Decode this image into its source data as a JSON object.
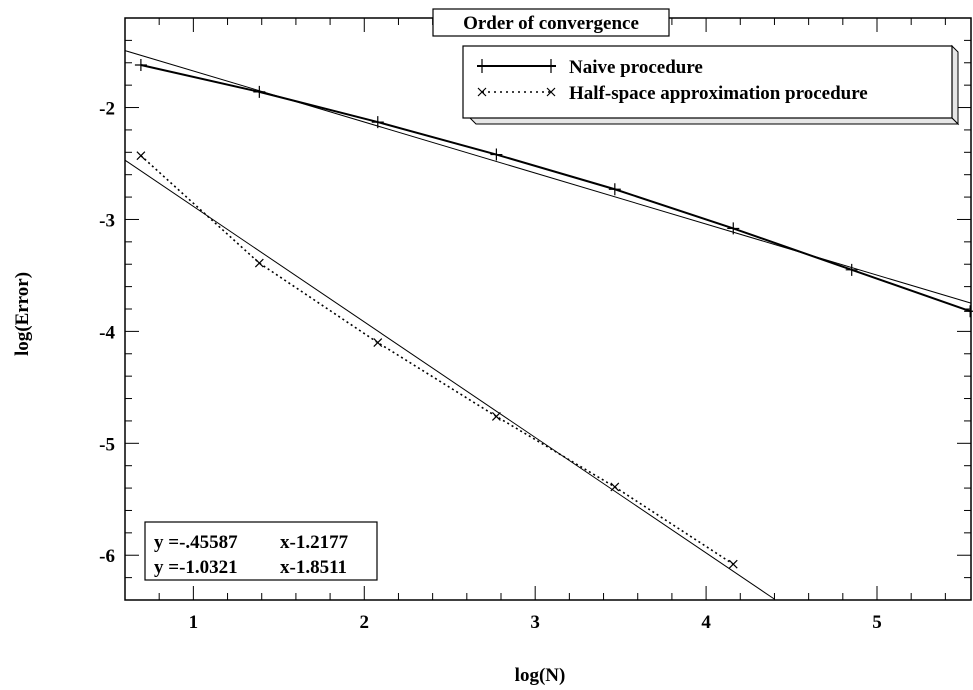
{
  "chart_data": {
    "type": "line",
    "title": "Order of convergence",
    "xlabel": "log(N)",
    "ylabel": "log(Error)",
    "xlim": [
      0.6,
      5.55
    ],
    "ylim": [
      -6.4,
      -1.2
    ],
    "x_ticks": [
      1,
      2,
      3,
      4,
      5
    ],
    "y_ticks": [
      -2,
      -3,
      -4,
      -5,
      -6
    ],
    "legend_position": "top-right",
    "grid": false,
    "series": [
      {
        "name": "Naive procedure",
        "marker": "plus",
        "line_style": "solid",
        "x": [
          0.693,
          1.386,
          2.079,
          2.773,
          3.466,
          4.159,
          4.852,
          5.545
        ],
        "y": [
          -1.62,
          -1.86,
          -2.13,
          -2.42,
          -2.73,
          -3.08,
          -3.45,
          -3.82
        ]
      },
      {
        "name": "Half-space approximation procedure",
        "marker": "cross",
        "line_style": "dotted",
        "x": [
          0.693,
          1.386,
          2.079,
          2.773,
          3.466,
          4.159
        ],
        "y": [
          -2.43,
          -3.39,
          -4.1,
          -4.76,
          -5.39,
          -6.08
        ]
      }
    ],
    "fit_lines": [
      {
        "slope": -0.45587,
        "intercept": -1.2177,
        "x": [
          0.6,
          5.55
        ]
      },
      {
        "slope": -1.0321,
        "intercept": -1.8511,
        "x": [
          0.6,
          4.4
        ]
      }
    ],
    "annotations": [
      {
        "lhs": "y =-.45587",
        "rhs": "x-1.2177"
      },
      {
        "lhs": "y =-1.0321",
        "rhs": "x-1.8511"
      }
    ]
  }
}
